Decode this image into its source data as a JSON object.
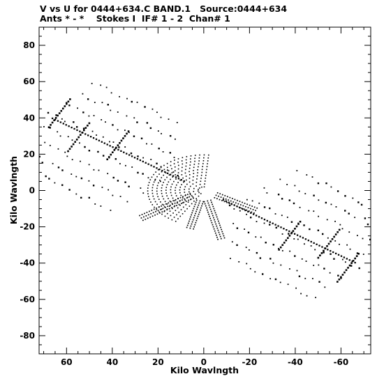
{
  "header": {
    "line1": "V vs U for 0444+634.C BAND.1   Source:0444+634",
    "line2": "Ants * - *    Stokes I  IF# 1 - 2  Chan# 1"
  },
  "chart_data": {
    "type": "scatter",
    "title": "V vs U for 0444+634.C BAND.1   Source:0444+634",
    "subtitle": "Ants * - *    Stokes I  IF# 1 - 2  Chan# 1",
    "xlabel": "Kilo Wavlngth",
    "ylabel": "Kilo Wavlngth",
    "x_reversed": true,
    "xlim": [
      72,
      -73
    ],
    "ylim": [
      -90,
      90
    ],
    "xticks": [
      60,
      40,
      20,
      0,
      -20,
      -40,
      -60
    ],
    "xtick_labels": [
      "60",
      "40",
      "20",
      "0",
      "-20",
      "-40",
      "-60"
    ],
    "yticks": [
      80,
      60,
      40,
      20,
      0,
      -20,
      -40,
      -60,
      -80
    ],
    "ytick_labels": [
      "80",
      "60",
      "40",
      "20",
      "0",
      "-20",
      "-40",
      "-60",
      "-80"
    ],
    "grid": false,
    "marker_color": "#000000",
    "notes": "uv-coverage: dots follow elliptical baseline tracks; points mirror through the origin",
    "tracks": {
      "hub_radii": [
        2.5,
        4.5,
        6.5,
        8.5,
        10.5,
        12.5,
        14.5,
        16.5,
        18.5,
        20.5,
        22.5,
        24.5
      ],
      "hub_axis_ratio": 0.8,
      "hub_arc_deg": [
        -60,
        95
      ],
      "spokes": [
        {
          "angle_deg": 206,
          "r_min": 6,
          "r_max": 26,
          "spread": 3
        },
        {
          "angle_deg": 254,
          "r_min": 6,
          "r_max": 28,
          "spread": 3
        },
        {
          "angle_deg": 331,
          "r_min": 6,
          "r_max": 32,
          "spread": 3
        },
        {
          "angle_deg": 286,
          "r_min": 6,
          "r_max": 22,
          "spread": 3
        }
      ],
      "lobe_rows": [
        {
          "offset": -26,
          "length": [
            30,
            74
          ],
          "step": 3.2
        },
        {
          "offset": -18,
          "length": [
            25,
            76
          ],
          "step": 3.2
        },
        {
          "offset": -10,
          "length": [
            20,
            78
          ],
          "step": 3.0
        },
        {
          "offset": -2,
          "length": [
            14,
            80
          ],
          "step": 3.0
        },
        {
          "offset": 6,
          "length": [
            18,
            80
          ],
          "step": 3.0
        },
        {
          "offset": 14,
          "length": [
            22,
            78
          ],
          "step": 3.2
        },
        {
          "offset": 22,
          "length": [
            26,
            76
          ],
          "step": 3.2
        },
        {
          "offset": 30,
          "length": [
            30,
            70
          ],
          "step": 3.4
        }
      ],
      "lobe_axis_deg": 31,
      "crossing_lines": [
        {
          "angle_deg": 31,
          "r_min": 10,
          "r_max": 78,
          "density": 1.4
        }
      ],
      "dashed_ridges": [
        {
          "center_along": 45,
          "offset": -2
        },
        {
          "center_along": 62,
          "offset": 3
        },
        {
          "center_along": 76,
          "offset": -4
        }
      ],
      "points_per_track": 9
    }
  }
}
